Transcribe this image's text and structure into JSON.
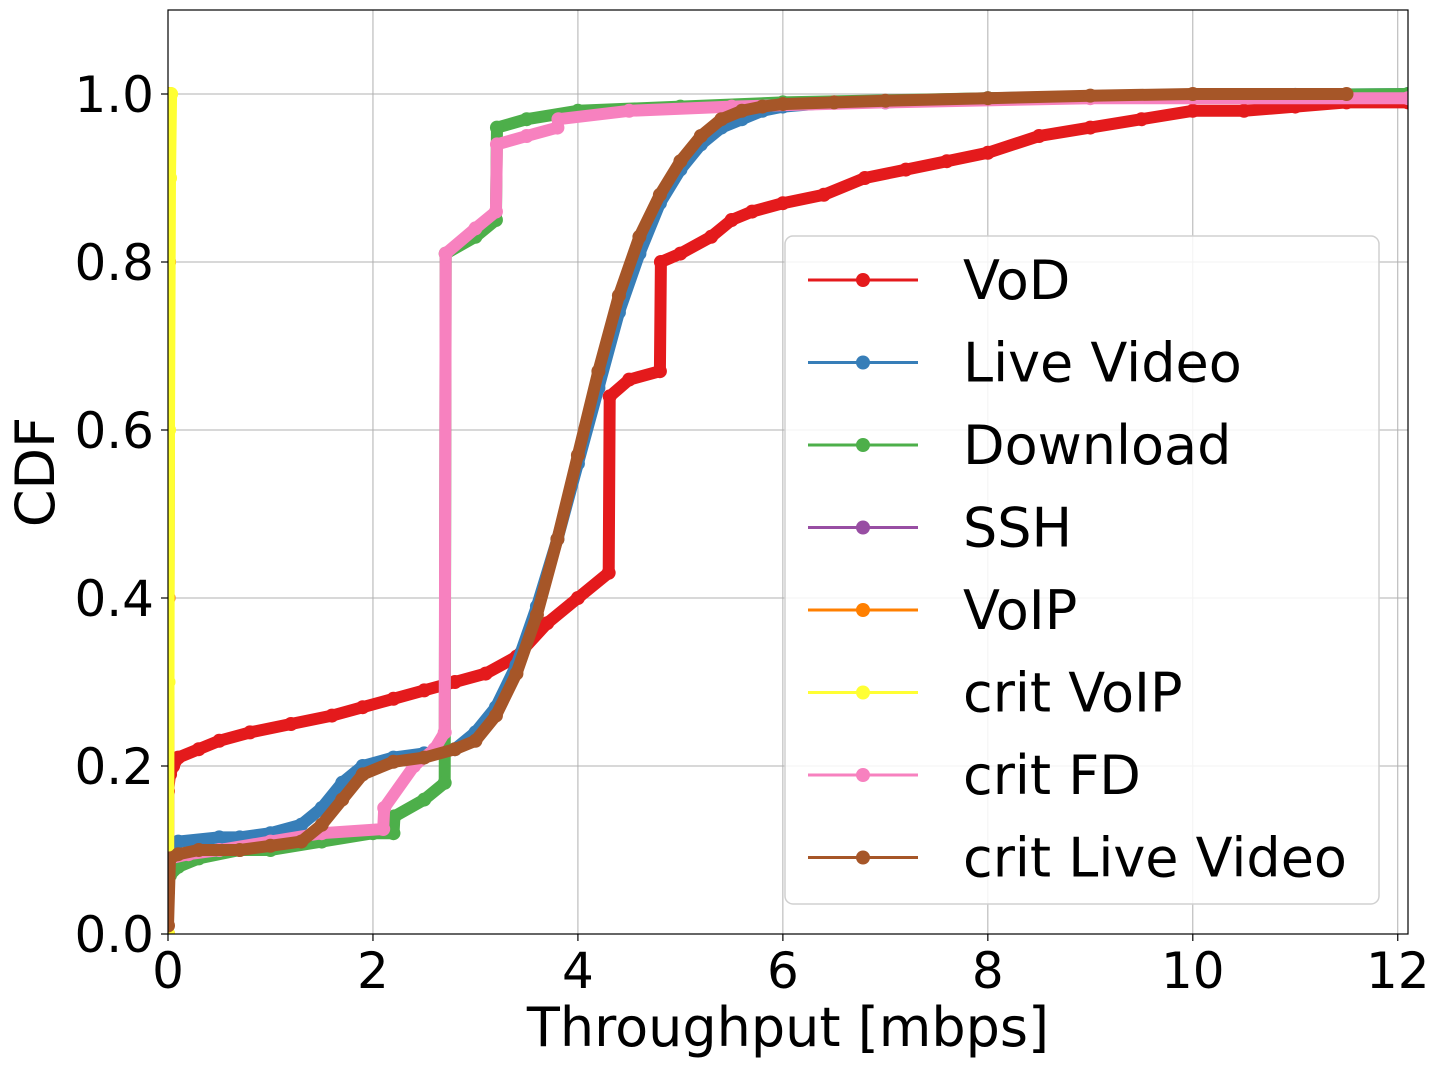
{
  "chart_data": {
    "type": "line",
    "title": "",
    "xlabel": "Throughput [mbps]",
    "ylabel": "CDF",
    "xlim": [
      0,
      12.1
    ],
    "ylim": [
      0,
      1.1
    ],
    "x_ticks": [
      0,
      2,
      4,
      6,
      8,
      10,
      12
    ],
    "y_ticks": [
      0.0,
      0.2,
      0.4,
      0.6,
      0.8,
      1.0
    ],
    "x_tick_labels": [
      "0",
      "2",
      "4",
      "6",
      "8",
      "10",
      "12"
    ],
    "y_tick_labels": [
      "0.0",
      "0.2",
      "0.4",
      "0.6",
      "0.8",
      "1.0"
    ],
    "grid": true,
    "legend_position": "center-right",
    "series": [
      {
        "name": "VoD",
        "color": "#e41a1c",
        "x": [
          0,
          0.02,
          0.05,
          0.1,
          0.3,
          0.5,
          0.8,
          1.2,
          1.6,
          1.9,
          2.2,
          2.5,
          2.8,
          3.1,
          3.4,
          3.7,
          4.0,
          4.3,
          4.31,
          4.5,
          4.8,
          4.81,
          5.0,
          5.3,
          5.5,
          5.7,
          6.0,
          6.4,
          6.8,
          7.2,
          7.6,
          8.0,
          8.5,
          9.0,
          9.5,
          10.0,
          10.5,
          11.0,
          11.5,
          12.1
        ],
        "y": [
          0.17,
          0.19,
          0.2,
          0.21,
          0.22,
          0.23,
          0.24,
          0.25,
          0.26,
          0.27,
          0.28,
          0.29,
          0.3,
          0.31,
          0.33,
          0.37,
          0.4,
          0.43,
          0.64,
          0.66,
          0.67,
          0.8,
          0.81,
          0.83,
          0.85,
          0.86,
          0.87,
          0.88,
          0.9,
          0.91,
          0.92,
          0.93,
          0.95,
          0.96,
          0.97,
          0.98,
          0.98,
          0.985,
          0.99,
          0.99
        ]
      },
      {
        "name": "Live Video",
        "color": "#377eb8",
        "x": [
          0,
          0.02,
          0.1,
          0.5,
          0.7,
          1.0,
          1.3,
          1.5,
          1.7,
          1.9,
          2.2,
          2.5,
          2.8,
          3.0,
          3.2,
          3.4,
          3.6,
          3.8,
          4.0,
          4.2,
          4.4,
          4.6,
          4.8,
          5.0,
          5.2,
          5.4,
          5.6,
          5.8,
          6.0,
          6.5,
          7.0,
          8.0,
          9.0,
          10.0,
          11.0,
          12.1
        ],
        "y": [
          0.05,
          0.1,
          0.11,
          0.115,
          0.115,
          0.12,
          0.13,
          0.15,
          0.18,
          0.2,
          0.21,
          0.215,
          0.22,
          0.24,
          0.27,
          0.32,
          0.39,
          0.47,
          0.56,
          0.65,
          0.74,
          0.81,
          0.87,
          0.91,
          0.94,
          0.96,
          0.97,
          0.98,
          0.985,
          0.99,
          0.99,
          0.995,
          0.997,
          0.998,
          0.999,
          1.0
        ]
      },
      {
        "name": "Download",
        "color": "#4daf4a",
        "x": [
          0,
          0.02,
          0.1,
          0.3,
          0.7,
          1.0,
          1.5,
          2.0,
          2.2,
          2.21,
          2.5,
          2.7,
          2.71,
          3.0,
          3.2,
          3.21,
          3.5,
          4.0,
          5.0,
          6.0,
          8.0,
          10.0,
          12.1
        ],
        "y": [
          0.06,
          0.07,
          0.08,
          0.09,
          0.1,
          0.1,
          0.11,
          0.12,
          0.12,
          0.14,
          0.16,
          0.18,
          0.81,
          0.83,
          0.85,
          0.96,
          0.97,
          0.98,
          0.985,
          0.99,
          0.995,
          0.998,
          1.0
        ]
      },
      {
        "name": "SSH",
        "color": "#984ea3",
        "x": [
          0,
          0.005,
          0.01,
          0.02
        ],
        "y": [
          0.0,
          0.4,
          0.8,
          1.0
        ]
      },
      {
        "name": "VoIP",
        "color": "#ff7f00",
        "x": [
          0,
          0.005,
          0.01,
          0.02
        ],
        "y": [
          0.0,
          0.4,
          0.8,
          1.0
        ]
      },
      {
        "name": "crit VoIP",
        "color": "#ffff33",
        "x": [
          0,
          0.005,
          0.01,
          0.02,
          0.03
        ],
        "y": [
          0.0,
          0.3,
          0.6,
          0.9,
          1.0
        ]
      },
      {
        "name": "crit FD",
        "color": "#f781bf",
        "x": [
          0,
          0.02,
          0.2,
          0.5,
          1.0,
          1.5,
          2.1,
          2.11,
          2.4,
          2.6,
          2.7,
          2.71,
          3.0,
          3.2,
          3.21,
          3.5,
          3.8,
          3.81,
          4.5,
          5.5,
          7.0,
          9.0,
          12.1
        ],
        "y": [
          0.08,
          0.09,
          0.095,
          0.1,
          0.11,
          0.12,
          0.125,
          0.15,
          0.2,
          0.22,
          0.24,
          0.81,
          0.84,
          0.86,
          0.94,
          0.95,
          0.96,
          0.97,
          0.98,
          0.985,
          0.99,
          0.995,
          0.995
        ]
      },
      {
        "name": "crit Live Video",
        "color": "#a65628",
        "x": [
          0,
          0.02,
          0.1,
          0.3,
          0.7,
          1.0,
          1.3,
          1.5,
          1.7,
          1.9,
          2.2,
          2.5,
          2.8,
          3.0,
          3.2,
          3.4,
          3.6,
          3.8,
          4.0,
          4.2,
          4.4,
          4.6,
          4.8,
          5.0,
          5.2,
          5.4,
          5.6,
          5.8,
          6.0,
          6.5,
          7.0,
          8.0,
          9.0,
          10.0,
          11.5
        ],
        "y": [
          0.01,
          0.09,
          0.095,
          0.1,
          0.1,
          0.105,
          0.11,
          0.13,
          0.16,
          0.19,
          0.205,
          0.21,
          0.22,
          0.23,
          0.26,
          0.31,
          0.38,
          0.47,
          0.57,
          0.67,
          0.76,
          0.83,
          0.88,
          0.92,
          0.95,
          0.97,
          0.98,
          0.985,
          0.988,
          0.99,
          0.992,
          0.995,
          0.998,
          1.0,
          1.0
        ]
      }
    ]
  }
}
